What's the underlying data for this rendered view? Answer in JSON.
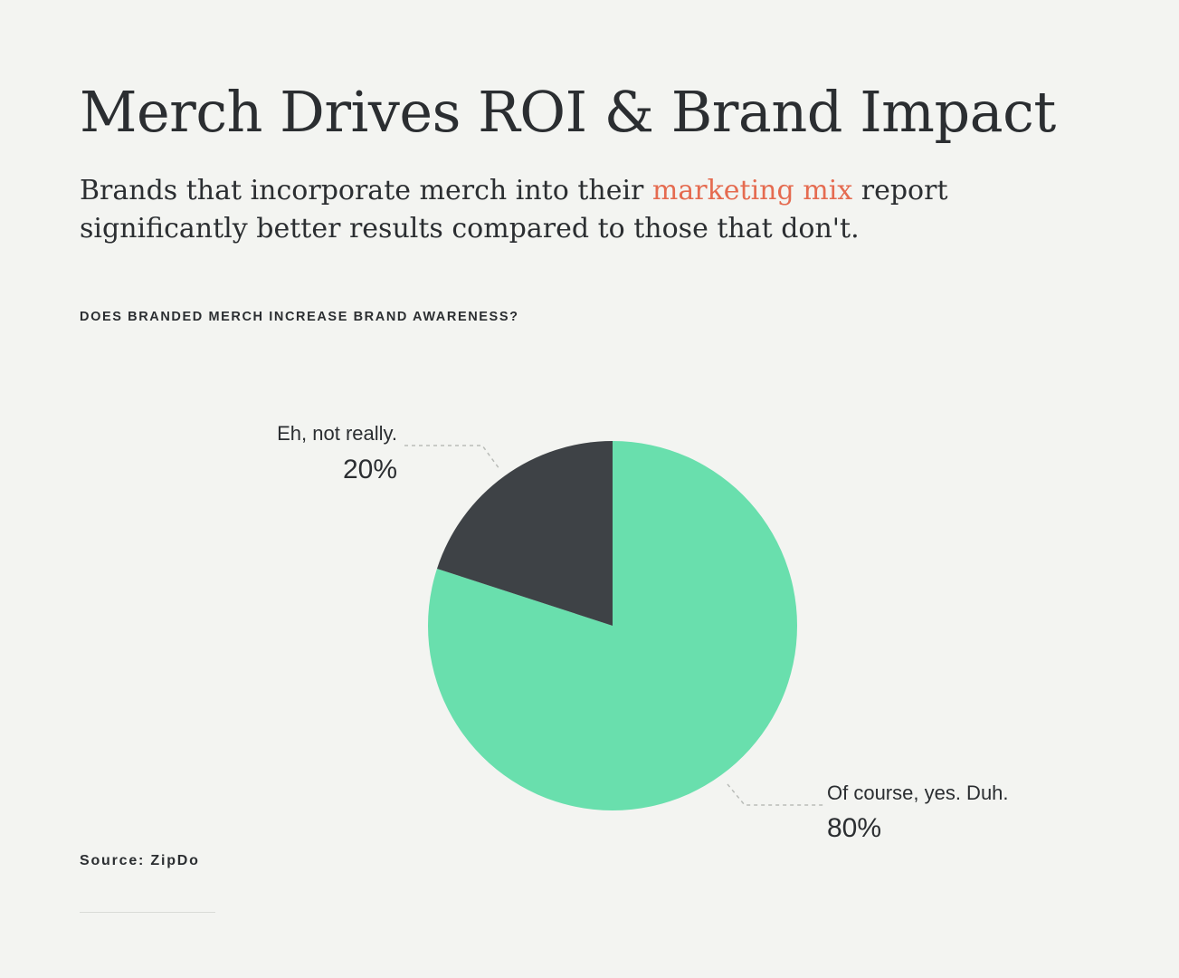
{
  "header": {
    "title": "Merch Drives ROI & Brand Impact",
    "subtitle_before": "Brands that incorporate merch into their ",
    "subtitle_accent": "marketing mix",
    "subtitle_after": " report significantly better results compared to those that don't."
  },
  "colors": {
    "accent": "#e56b50",
    "text": "#2b2e31",
    "background": "#f3f4f1"
  },
  "chart_data": {
    "type": "pie",
    "title": "DOES BRANDED MERCH INCREASE BRAND AWARENESS?",
    "slices": [
      {
        "label": "Of course, yes. Duh.",
        "value": 80,
        "display": "80%",
        "color": "#69dfad"
      },
      {
        "label": "Eh, not really.",
        "value": 20,
        "display": "20%",
        "color": "#3e4246"
      }
    ]
  },
  "footer": {
    "source": "Source: ZipDo"
  }
}
